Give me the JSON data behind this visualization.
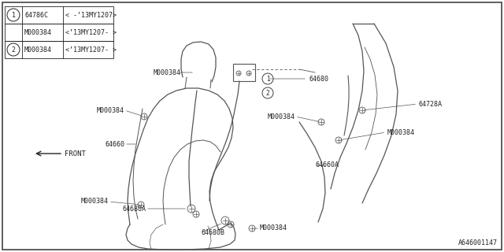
{
  "bg_color": "#ffffff",
  "line_color": "#555555",
  "text_color": "#222222",
  "fig_width": 6.4,
  "fig_height": 3.2,
  "dpi": 100,
  "footer_text": "A646001147",
  "legend": [
    {
      "num": "1",
      "part": "64786C",
      "date": "< -’13MY1207>"
    },
    {
      "num": "1",
      "part": "M000384",
      "date": "<’13MY1207- >"
    },
    {
      "num": "2",
      "part": "M000384",
      "date": "<’13MY1207- >"
    }
  ]
}
